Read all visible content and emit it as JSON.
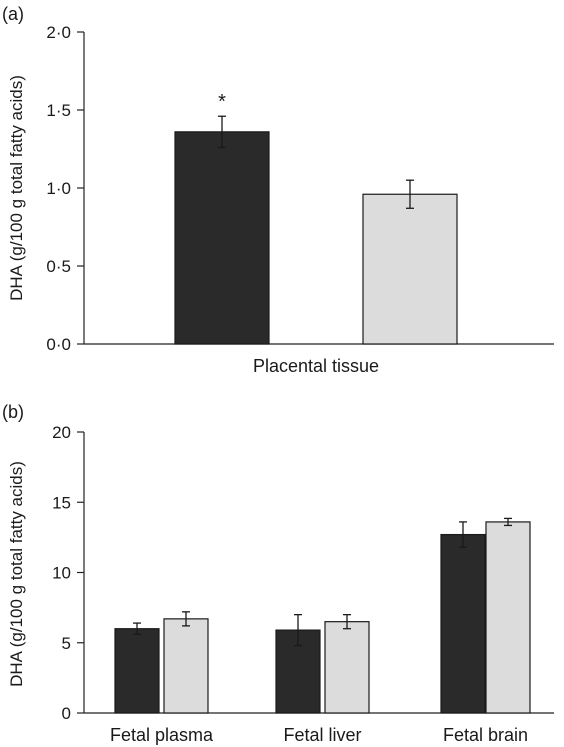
{
  "chart_data": [
    {
      "type": "bar",
      "panel": "(a)",
      "ylabel": "DHA (g/100 g total fatty acids)",
      "ylim": [
        0,
        2.0
      ],
      "yticks": [
        "0·0",
        "0·5",
        "1·0",
        "1·5",
        "2·0"
      ],
      "categories": [
        "Placental tissue"
      ],
      "series": [
        {
          "color": "#2b2a2b",
          "values": [
            1.36
          ],
          "errors": [
            0.1
          ],
          "annotations": [
            "*"
          ]
        },
        {
          "color": "#dcdcdc",
          "values": [
            0.96
          ],
          "errors": [
            0.09
          ],
          "annotations": [
            ""
          ]
        }
      ]
    },
    {
      "type": "bar",
      "panel": "(b)",
      "ylabel": "DHA (g/100 g total fatty acids)",
      "ylim": [
        0,
        20
      ],
      "yticks": [
        "0",
        "5",
        "10",
        "15",
        "20"
      ],
      "categories": [
        "Fetal plasma",
        "Fetal liver",
        "Fetal brain"
      ],
      "series": [
        {
          "color": "#2b2a2b",
          "values": [
            6.0,
            5.9,
            12.7
          ],
          "errors": [
            0.4,
            1.1,
            0.9
          ],
          "annotations": [
            "",
            "",
            ""
          ]
        },
        {
          "color": "#dcdcdc",
          "values": [
            6.7,
            6.5,
            13.6
          ],
          "errors": [
            0.5,
            0.5,
            0.25
          ],
          "annotations": [
            "",
            "",
            ""
          ]
        }
      ]
    }
  ]
}
